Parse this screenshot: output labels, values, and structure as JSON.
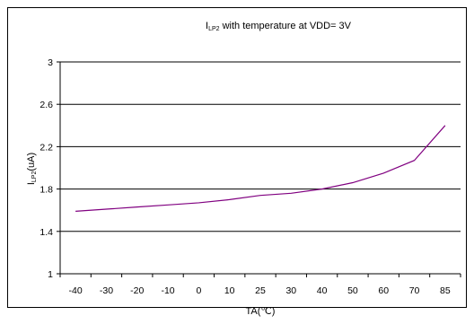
{
  "chart_data": {
    "type": "line",
    "title": {
      "main": "I",
      "sub": "LP2",
      "rest": " with temperature at VDD= 3V"
    },
    "xlabel": "TA(℃)",
    "ylabel": {
      "main": "I",
      "sub": "LP2",
      "rest": "(uA)"
    },
    "categories": [
      "-40",
      "-30",
      "-20",
      "-10",
      "0",
      "10",
      "25",
      "30",
      "40",
      "50",
      "60",
      "70",
      "85"
    ],
    "y_ticks": [
      "1",
      "1.4",
      "1.8",
      "2.2",
      "2.6",
      "3"
    ],
    "ylim": [
      1,
      3
    ],
    "grid": "horizontal",
    "series": [
      {
        "values": [
          1.59,
          1.61,
          1.63,
          1.65,
          1.67,
          1.7,
          1.74,
          1.76,
          1.8,
          1.86,
          1.95,
          2.07,
          2.4
        ],
        "color": "#800080"
      }
    ]
  }
}
